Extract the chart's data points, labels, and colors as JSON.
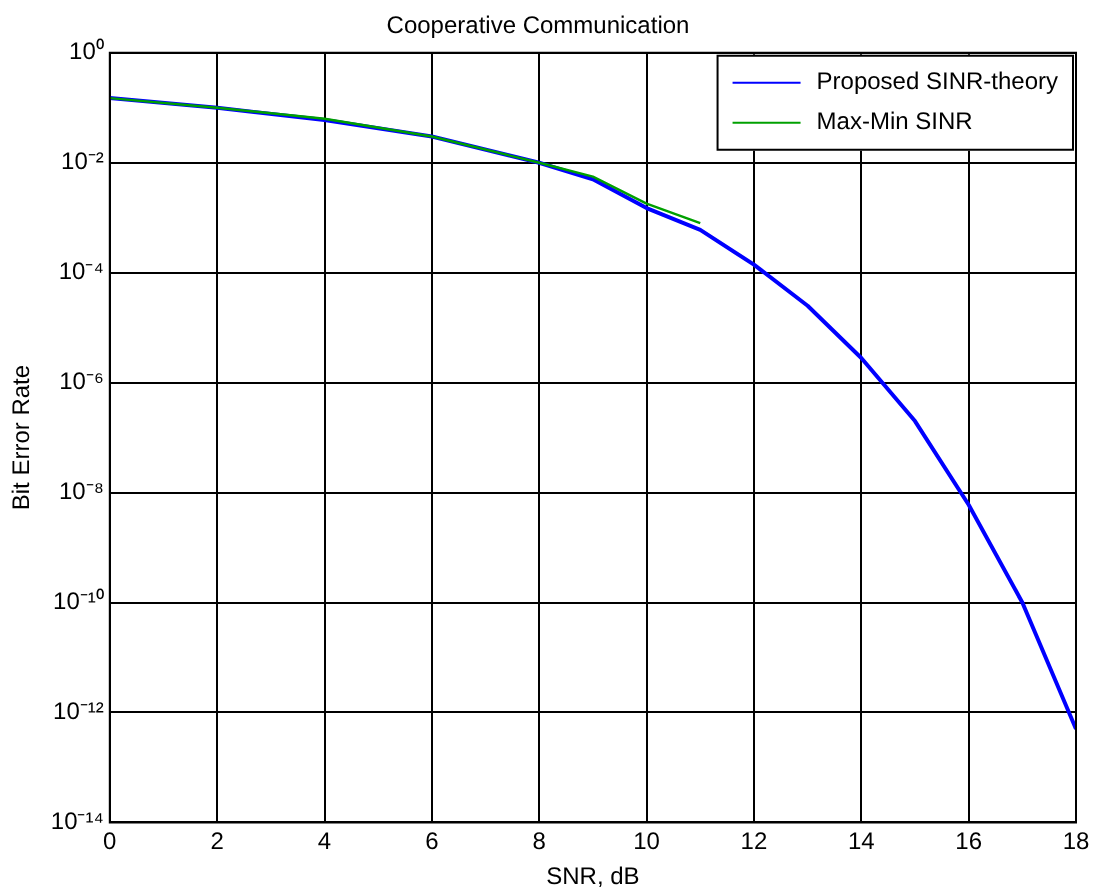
{
  "chart_data": {
    "type": "line",
    "title": "Cooperative Communication",
    "xlabel": "SNR, dB",
    "ylabel": "Bit Error Rate",
    "x": [
      0,
      2,
      4,
      6,
      8,
      9,
      10,
      11,
      12,
      13,
      14,
      15,
      16,
      17,
      18
    ],
    "series": [
      {
        "name": "Proposed SINR-theory",
        "color": "#0000ff",
        "values": [
          0.15,
          0.1,
          0.06,
          0.03,
          0.01,
          0.005,
          0.0015,
          0.0006,
          0.00014,
          2.5e-05,
          2.8e-06,
          2e-07,
          6e-09,
          1e-10,
          5e-13
        ]
      },
      {
        "name": "Max-Min SINR",
        "color": "#00a000",
        "x": [
          0,
          2,
          4,
          6,
          8,
          9,
          10,
          11
        ],
        "values": [
          0.15,
          0.1,
          0.063,
          0.03,
          0.01,
          0.0056,
          0.0018,
          0.0008
        ]
      }
    ],
    "log": "y",
    "xlim": [
      0,
      18
    ],
    "xticks": [
      0,
      2,
      4,
      6,
      8,
      10,
      12,
      14,
      16,
      18
    ],
    "ylim": [
      1e-14,
      1
    ],
    "yticks": [
      {
        "value": 1e-14,
        "label": "10⁻¹⁴"
      },
      {
        "value": 1e-12,
        "label": "10⁻¹²"
      },
      {
        "value": 1e-10,
        "label": "10⁻¹⁰"
      },
      {
        "value": 1e-08,
        "label": "10⁻⁸"
      },
      {
        "value": 1e-06,
        "label": "10⁻⁶"
      },
      {
        "value": 0.0001,
        "label": "10⁻⁴"
      },
      {
        "value": 0.01,
        "label": "10⁻²"
      },
      {
        "value": 1,
        "label": "10⁰"
      }
    ],
    "grid": true,
    "legend": "top right",
    "marker": "none",
    "line_style": "solid"
  }
}
